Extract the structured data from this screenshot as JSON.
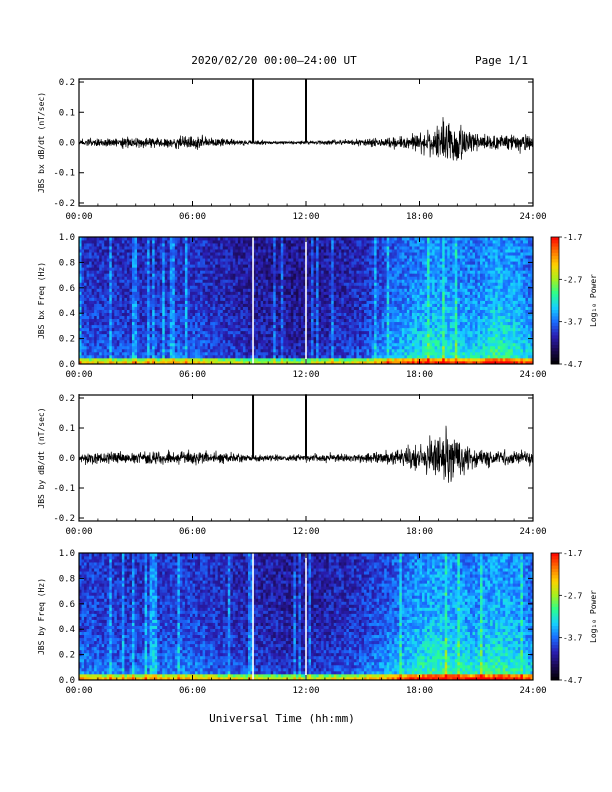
{
  "header": {
    "title": "2020/02/20  00:00–24:00 UT",
    "page": "Page 1/1"
  },
  "footer": {
    "xlabel": "Universal Time (hh:mm)"
  },
  "time_ticks": [
    "00:00",
    "06:00",
    "12:00",
    "18:00",
    "24:00"
  ],
  "colors": {
    "scale": [
      "#000000",
      "#1b0a55",
      "#2a1fb4",
      "#1a6cff",
      "#16d2ff",
      "#2cff8c",
      "#a8f01e",
      "#ffd200",
      "#ff7000",
      "#ff0000"
    ]
  },
  "colorbar": {
    "label": "Log₁₀ Power",
    "ticks": [
      "-1.7",
      "-2.7",
      "-3.7",
      "-4.7"
    ],
    "range": [
      -4.7,
      -1.7
    ]
  },
  "chart_data": [
    {
      "type": "line",
      "ylabel": "JBS bx dB/dt (nT/sec)",
      "xlim": [
        0,
        24
      ],
      "ylim": [
        -0.21,
        0.21
      ],
      "yticks": [
        "0.2",
        "0.1",
        "0.0",
        "-0.1",
        "-0.2"
      ],
      "spikes_h": [
        9.2,
        12.0
      ],
      "envelope": {
        "x": [
          0,
          3,
          5,
          6,
          8,
          10,
          12,
          14,
          15,
          16,
          17,
          18,
          19,
          19.5,
          20,
          20.5,
          21,
          22,
          23,
          24
        ],
        "y": [
          0.015,
          0.02,
          0.02,
          0.03,
          0.012,
          0.008,
          0.007,
          0.012,
          0.015,
          0.018,
          0.025,
          0.04,
          0.07,
          0.09,
          0.1,
          0.06,
          0.035,
          0.03,
          0.035,
          0.03
        ]
      }
    },
    {
      "type": "heatmap",
      "ylabel": "JBS bx Freq (Hz)",
      "xlim": [
        0,
        24
      ],
      "ylim": [
        0,
        1.0
      ],
      "yticks": [
        "1.0",
        "0.8",
        "0.6",
        "0.4",
        "0.2",
        "0.0"
      ],
      "white_lines_h": [
        9.2,
        12.0
      ],
      "activity": {
        "x": [
          0,
          3,
          6,
          9,
          12,
          15,
          16.5,
          18,
          19,
          20,
          21,
          22,
          23,
          24
        ],
        "level": [
          0.4,
          0.35,
          0.4,
          0.25,
          0.2,
          0.35,
          0.55,
          0.7,
          0.75,
          0.7,
          0.65,
          0.8,
          0.75,
          0.6
        ]
      }
    },
    {
      "type": "line",
      "ylabel": "JBS by dB/dt (nT/sec)",
      "xlim": [
        0,
        24
      ],
      "ylim": [
        -0.21,
        0.21
      ],
      "yticks": [
        "0.2",
        "0.1",
        "0.0",
        "-0.1",
        "-0.2"
      ],
      "spikes_h": [
        9.2,
        12.0
      ],
      "envelope": {
        "x": [
          0,
          2,
          4,
          6,
          8,
          10,
          12,
          14,
          16,
          17,
          18,
          19,
          19.5,
          20,
          20.5,
          21,
          22,
          23,
          24
        ],
        "y": [
          0.022,
          0.025,
          0.028,
          0.028,
          0.02,
          0.012,
          0.015,
          0.018,
          0.025,
          0.035,
          0.055,
          0.09,
          0.11,
          0.09,
          0.05,
          0.035,
          0.03,
          0.03,
          0.028
        ]
      }
    },
    {
      "type": "heatmap",
      "ylabel": "JBS by Freq (Hz)",
      "xlim": [
        0,
        24
      ],
      "ylim": [
        0,
        1.0
      ],
      "yticks": [
        "1.0",
        "0.8",
        "0.6",
        "0.4",
        "0.2",
        "0.0"
      ],
      "white_lines_h": [
        9.2,
        12.0
      ],
      "activity": {
        "x": [
          0,
          3,
          6,
          9,
          12,
          15,
          16.5,
          18,
          19,
          20,
          21,
          22,
          23,
          24
        ],
        "level": [
          0.45,
          0.4,
          0.45,
          0.3,
          0.25,
          0.4,
          0.55,
          0.75,
          0.8,
          0.75,
          0.7,
          0.8,
          0.75,
          0.6
        ]
      }
    }
  ]
}
